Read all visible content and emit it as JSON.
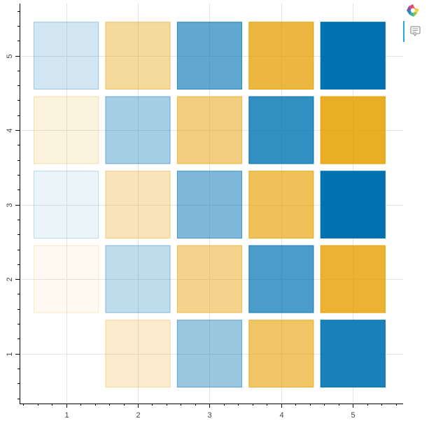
{
  "chart_data": {
    "type": "heatmap",
    "title": "",
    "xlabel": "",
    "ylabel": "",
    "x_ticks": [
      "1",
      "2",
      "3",
      "4",
      "5"
    ],
    "y_ticks": [
      "1",
      "2",
      "3",
      "4",
      "5"
    ],
    "xlim": [
      0.35,
      5.7
    ],
    "ylim": [
      0.33,
      5.7
    ],
    "grid": true,
    "colors": {
      "blue": "#0072b2",
      "orange": "#e69f00"
    },
    "cells": [
      {
        "x": 2,
        "y": 1,
        "color": "orange",
        "alpha": 0.2
      },
      {
        "x": 3,
        "y": 1,
        "color": "blue",
        "alpha": 0.4
      },
      {
        "x": 4,
        "y": 1,
        "color": "orange",
        "alpha": 0.6
      },
      {
        "x": 5,
        "y": 1,
        "color": "blue",
        "alpha": 0.9
      },
      {
        "x": 1,
        "y": 2,
        "color": "orange",
        "alpha": 0.05
      },
      {
        "x": 2,
        "y": 2,
        "color": "blue",
        "alpha": 0.25
      },
      {
        "x": 3,
        "y": 2,
        "color": "orange",
        "alpha": 0.45
      },
      {
        "x": 4,
        "y": 2,
        "color": "blue",
        "alpha": 0.7
      },
      {
        "x": 5,
        "y": 2,
        "color": "orange",
        "alpha": 0.8
      },
      {
        "x": 1,
        "y": 3,
        "color": "blue",
        "alpha": 0.08
      },
      {
        "x": 2,
        "y": 3,
        "color": "orange",
        "alpha": 0.28
      },
      {
        "x": 3,
        "y": 3,
        "color": "blue",
        "alpha": 0.5
      },
      {
        "x": 4,
        "y": 3,
        "color": "orange",
        "alpha": 0.65
      },
      {
        "x": 5,
        "y": 3,
        "color": "blue",
        "alpha": 1.0
      },
      {
        "x": 1,
        "y": 4,
        "color": "orange",
        "alpha": 0.13
      },
      {
        "x": 2,
        "y": 4,
        "color": "blue",
        "alpha": 0.35
      },
      {
        "x": 3,
        "y": 4,
        "color": "orange",
        "alpha": 0.5
      },
      {
        "x": 4,
        "y": 4,
        "color": "blue",
        "alpha": 0.8
      },
      {
        "x": 5,
        "y": 4,
        "color": "orange",
        "alpha": 0.85
      },
      {
        "x": 1,
        "y": 5,
        "color": "blue",
        "alpha": 0.18
      },
      {
        "x": 2,
        "y": 5,
        "color": "orange",
        "alpha": 0.38
      },
      {
        "x": 3,
        "y": 5,
        "color": "blue",
        "alpha": 0.62
      },
      {
        "x": 4,
        "y": 5,
        "color": "orange",
        "alpha": 0.75
      },
      {
        "x": 5,
        "y": 5,
        "color": "blue",
        "alpha": 1.0
      }
    ]
  },
  "toolbar": {
    "logo_icon": "bokeh-logo-icon",
    "tools": [
      {
        "name": "hover-tool-icon"
      }
    ]
  }
}
